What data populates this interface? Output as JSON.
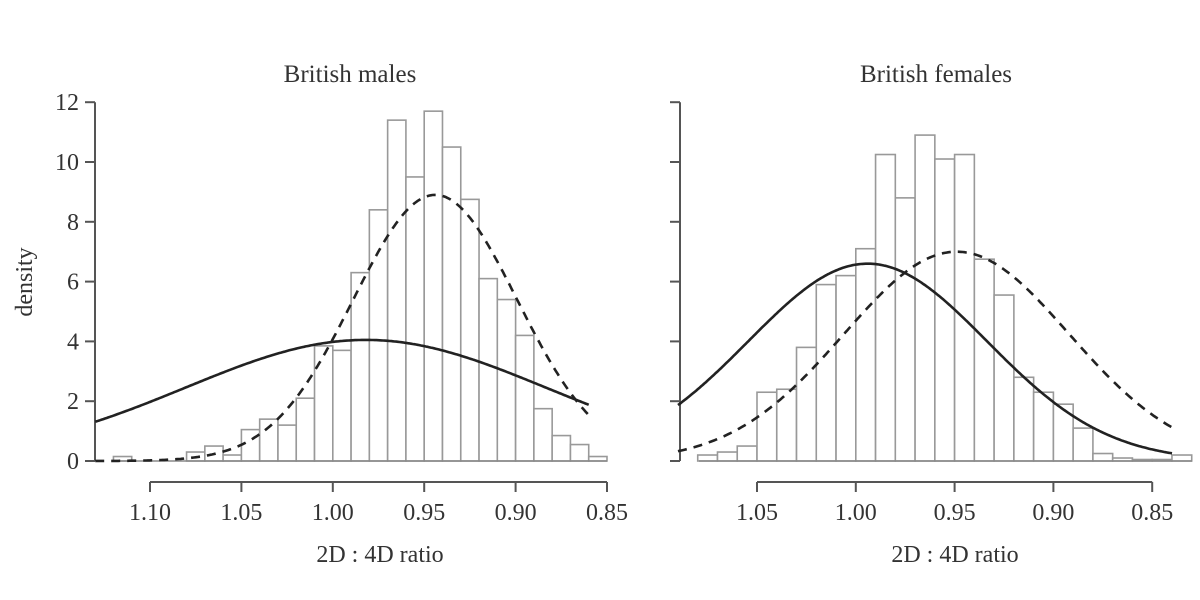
{
  "chart_data": [
    {
      "type": "bar",
      "title": "British males",
      "xlabel": "2D : 4D ratio",
      "ylabel": "density",
      "xlim": [
        1.12,
        0.85
      ],
      "ylim": [
        0,
        12
      ],
      "x_reversed": true,
      "xticks": [
        "1.10",
        "1.05",
        "1.00",
        "0.95",
        "0.90",
        "0.85"
      ],
      "yticks": [
        "0",
        "2",
        "4",
        "6",
        "8",
        "10",
        "12"
      ],
      "bin_width": 0.01,
      "bin_left_edges": [
        1.12,
        1.11,
        1.1,
        1.09,
        1.08,
        1.07,
        1.06,
        1.05,
        1.04,
        1.03,
        1.02,
        1.01,
        1.0,
        0.99,
        0.98,
        0.97,
        0.96,
        0.95,
        0.94,
        0.93,
        0.92,
        0.91,
        0.9,
        0.89,
        0.88,
        0.87,
        0.86
      ],
      "values": [
        0.15,
        0,
        0,
        0,
        0.3,
        0.5,
        0.2,
        1.05,
        1.4,
        1.2,
        2.1,
        3.85,
        3.7,
        6.3,
        8.4,
        11.4,
        9.5,
        11.7,
        10.5,
        8.75,
        6.1,
        5.4,
        4.2,
        1.75,
        0.85,
        0.55,
        0.15
      ],
      "series": [
        {
          "name": "solid normal curve",
          "style": "solid",
          "mean": 0.982,
          "peak": 4.05
        },
        {
          "name": "dashed normal curve",
          "style": "dashed",
          "mean": 0.944,
          "peak": 8.9
        }
      ],
      "grid": false
    },
    {
      "type": "bar",
      "title": "British females",
      "xlabel": "2D : 4D ratio",
      "ylabel": "",
      "xlim": [
        1.08,
        0.83
      ],
      "ylim": [
        0,
        12
      ],
      "x_reversed": true,
      "xticks": [
        "1.05",
        "1.00",
        "0.95",
        "0.90",
        "0.85"
      ],
      "yticks": [],
      "bin_width": 0.01,
      "bin_left_edges": [
        1.08,
        1.07,
        1.06,
        1.05,
        1.04,
        1.03,
        1.02,
        1.01,
        1.0,
        0.99,
        0.98,
        0.97,
        0.96,
        0.95,
        0.94,
        0.93,
        0.92,
        0.91,
        0.9,
        0.89,
        0.88,
        0.87,
        0.86,
        0.85,
        0.84
      ],
      "values": [
        0.2,
        0.3,
        0.5,
        2.3,
        2.4,
        3.8,
        5.9,
        6.2,
        7.1,
        10.25,
        8.8,
        10.9,
        10.1,
        10.25,
        6.75,
        5.55,
        2.8,
        2.3,
        1.9,
        1.1,
        0.25,
        0.1,
        0.05,
        0.05,
        0.2
      ],
      "series": [
        {
          "name": "solid normal curve",
          "style": "solid",
          "mean": 0.994,
          "peak": 6.6
        },
        {
          "name": "dashed normal curve",
          "style": "dashed",
          "mean": 0.949,
          "peak": 7.0
        }
      ],
      "grid": false
    }
  ],
  "labels": {
    "left_title": "British males",
    "right_title": "British females",
    "left_xlabel": "2D : 4D ratio",
    "right_xlabel": "2D : 4D ratio",
    "ylabel": "density"
  }
}
